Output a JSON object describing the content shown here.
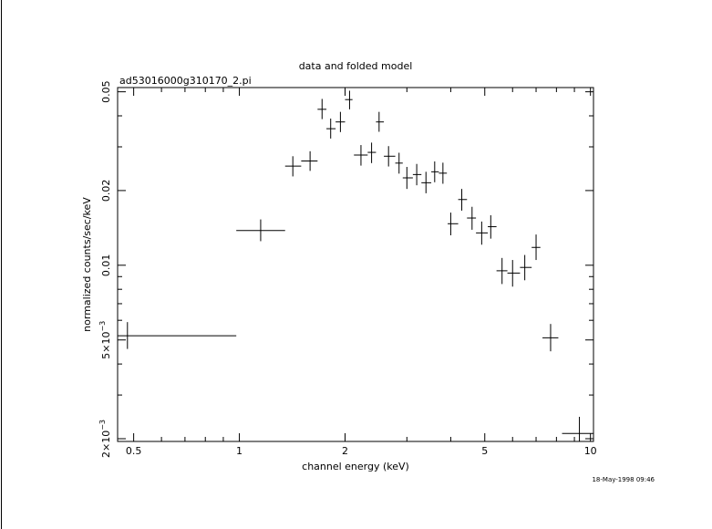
{
  "chart_data": {
    "type": "scatter",
    "title": "data and folded model",
    "subtitle": "ad53016000g310170_2.pi",
    "xlabel": "channel energy (keV)",
    "ylabel": "normalized counts/sec/keV",
    "xscale": "log",
    "yscale": "log",
    "xlim": [
      0.45,
      10.2
    ],
    "ylim": [
      0.00195,
      0.052
    ],
    "x_ticks": [
      {
        "value": 0.5,
        "label": "0.5"
      },
      {
        "value": 1,
        "label": "1"
      },
      {
        "value": 2,
        "label": "2"
      },
      {
        "value": 5,
        "label": "5"
      },
      {
        "value": 10,
        "label": "10"
      }
    ],
    "y_ticks": [
      {
        "value": 0.002,
        "label": "2×10",
        "exp": "−3"
      },
      {
        "value": 0.005,
        "label": "5×10",
        "exp": "−3"
      },
      {
        "value": 0.01,
        "label": "0.01"
      },
      {
        "value": 0.02,
        "label": "0.02"
      },
      {
        "value": 0.05,
        "label": "0.05"
      }
    ],
    "grid": false,
    "legend": "none",
    "timestamp": "18-May-1998 09:46",
    "points": [
      {
        "x": 0.48,
        "xlo": 0.45,
        "xhi": 0.98,
        "y": 0.0052,
        "ylo": 0.0046,
        "yhi": 0.0059
      },
      {
        "x": 1.15,
        "xlo": 0.98,
        "xhi": 1.35,
        "y": 0.0138,
        "ylo": 0.0125,
        "yhi": 0.0153
      },
      {
        "x": 1.42,
        "xlo": 1.35,
        "xhi": 1.5,
        "y": 0.0251,
        "ylo": 0.0228,
        "yhi": 0.0275
      },
      {
        "x": 1.59,
        "xlo": 1.5,
        "xhi": 1.67,
        "y": 0.0263,
        "ylo": 0.024,
        "yhi": 0.0288
      },
      {
        "x": 1.72,
        "xlo": 1.67,
        "xhi": 1.77,
        "y": 0.0425,
        "ylo": 0.0388,
        "yhi": 0.0468
      },
      {
        "x": 1.82,
        "xlo": 1.77,
        "xhi": 1.88,
        "y": 0.0355,
        "ylo": 0.0324,
        "yhi": 0.039
      },
      {
        "x": 1.94,
        "xlo": 1.88,
        "xhi": 2.0,
        "y": 0.0378,
        "ylo": 0.0344,
        "yhi": 0.0415
      },
      {
        "x": 2.06,
        "xlo": 2.0,
        "xhi": 2.1,
        "y": 0.0465,
        "ylo": 0.0425,
        "yhi": 0.0505
      },
      {
        "x": 2.22,
        "xlo": 2.12,
        "xhi": 2.32,
        "y": 0.0278,
        "ylo": 0.0252,
        "yhi": 0.0305
      },
      {
        "x": 2.38,
        "xlo": 2.32,
        "xhi": 2.45,
        "y": 0.0285,
        "ylo": 0.0258,
        "yhi": 0.0312
      },
      {
        "x": 2.5,
        "xlo": 2.45,
        "xhi": 2.58,
        "y": 0.0378,
        "ylo": 0.0345,
        "yhi": 0.0415
      },
      {
        "x": 2.66,
        "xlo": 2.58,
        "xhi": 2.78,
        "y": 0.0275,
        "ylo": 0.025,
        "yhi": 0.0302
      },
      {
        "x": 2.85,
        "xlo": 2.78,
        "xhi": 2.92,
        "y": 0.0258,
        "ylo": 0.0234,
        "yhi": 0.0284
      },
      {
        "x": 3.0,
        "xlo": 2.92,
        "xhi": 3.12,
        "y": 0.0225,
        "ylo": 0.0203,
        "yhi": 0.0249
      },
      {
        "x": 3.2,
        "xlo": 3.12,
        "xhi": 3.3,
        "y": 0.0232,
        "ylo": 0.021,
        "yhi": 0.0256
      },
      {
        "x": 3.4,
        "xlo": 3.3,
        "xhi": 3.52,
        "y": 0.0215,
        "ylo": 0.0195,
        "yhi": 0.0238
      },
      {
        "x": 3.6,
        "xlo": 3.52,
        "xhi": 3.7,
        "y": 0.0238,
        "ylo": 0.0216,
        "yhi": 0.0262
      },
      {
        "x": 3.8,
        "xlo": 3.7,
        "xhi": 3.9,
        "y": 0.0235,
        "ylo": 0.0213,
        "yhi": 0.0259
      },
      {
        "x": 4.0,
        "xlo": 3.92,
        "xhi": 4.2,
        "y": 0.0147,
        "ylo": 0.0132,
        "yhi": 0.0163
      },
      {
        "x": 4.3,
        "xlo": 4.2,
        "xhi": 4.45,
        "y": 0.0184,
        "ylo": 0.0166,
        "yhi": 0.0203
      },
      {
        "x": 4.6,
        "xlo": 4.45,
        "xhi": 4.72,
        "y": 0.0155,
        "ylo": 0.0139,
        "yhi": 0.0172
      },
      {
        "x": 4.9,
        "xlo": 4.72,
        "xhi": 5.1,
        "y": 0.0135,
        "ylo": 0.0121,
        "yhi": 0.015
      },
      {
        "x": 5.2,
        "xlo": 5.1,
        "xhi": 5.4,
        "y": 0.0143,
        "ylo": 0.0128,
        "yhi": 0.0159
      },
      {
        "x": 5.6,
        "xlo": 5.4,
        "xhi": 5.8,
        "y": 0.0095,
        "ylo": 0.0084,
        "yhi": 0.0107
      },
      {
        "x": 6.0,
        "xlo": 5.8,
        "xhi": 6.3,
        "y": 0.0093,
        "ylo": 0.0082,
        "yhi": 0.0105
      },
      {
        "x": 6.5,
        "xlo": 6.3,
        "xhi": 6.8,
        "y": 0.0098,
        "ylo": 0.0087,
        "yhi": 0.011
      },
      {
        "x": 7.0,
        "xlo": 6.8,
        "xhi": 7.2,
        "y": 0.0118,
        "ylo": 0.0105,
        "yhi": 0.0133
      },
      {
        "x": 7.7,
        "xlo": 7.3,
        "xhi": 8.1,
        "y": 0.0051,
        "ylo": 0.0045,
        "yhi": 0.0058
      },
      {
        "x": 9.3,
        "xlo": 8.3,
        "xhi": 10.2,
        "y": 0.0021,
        "ylo": 0.00195,
        "yhi": 0.00245
      }
    ]
  }
}
